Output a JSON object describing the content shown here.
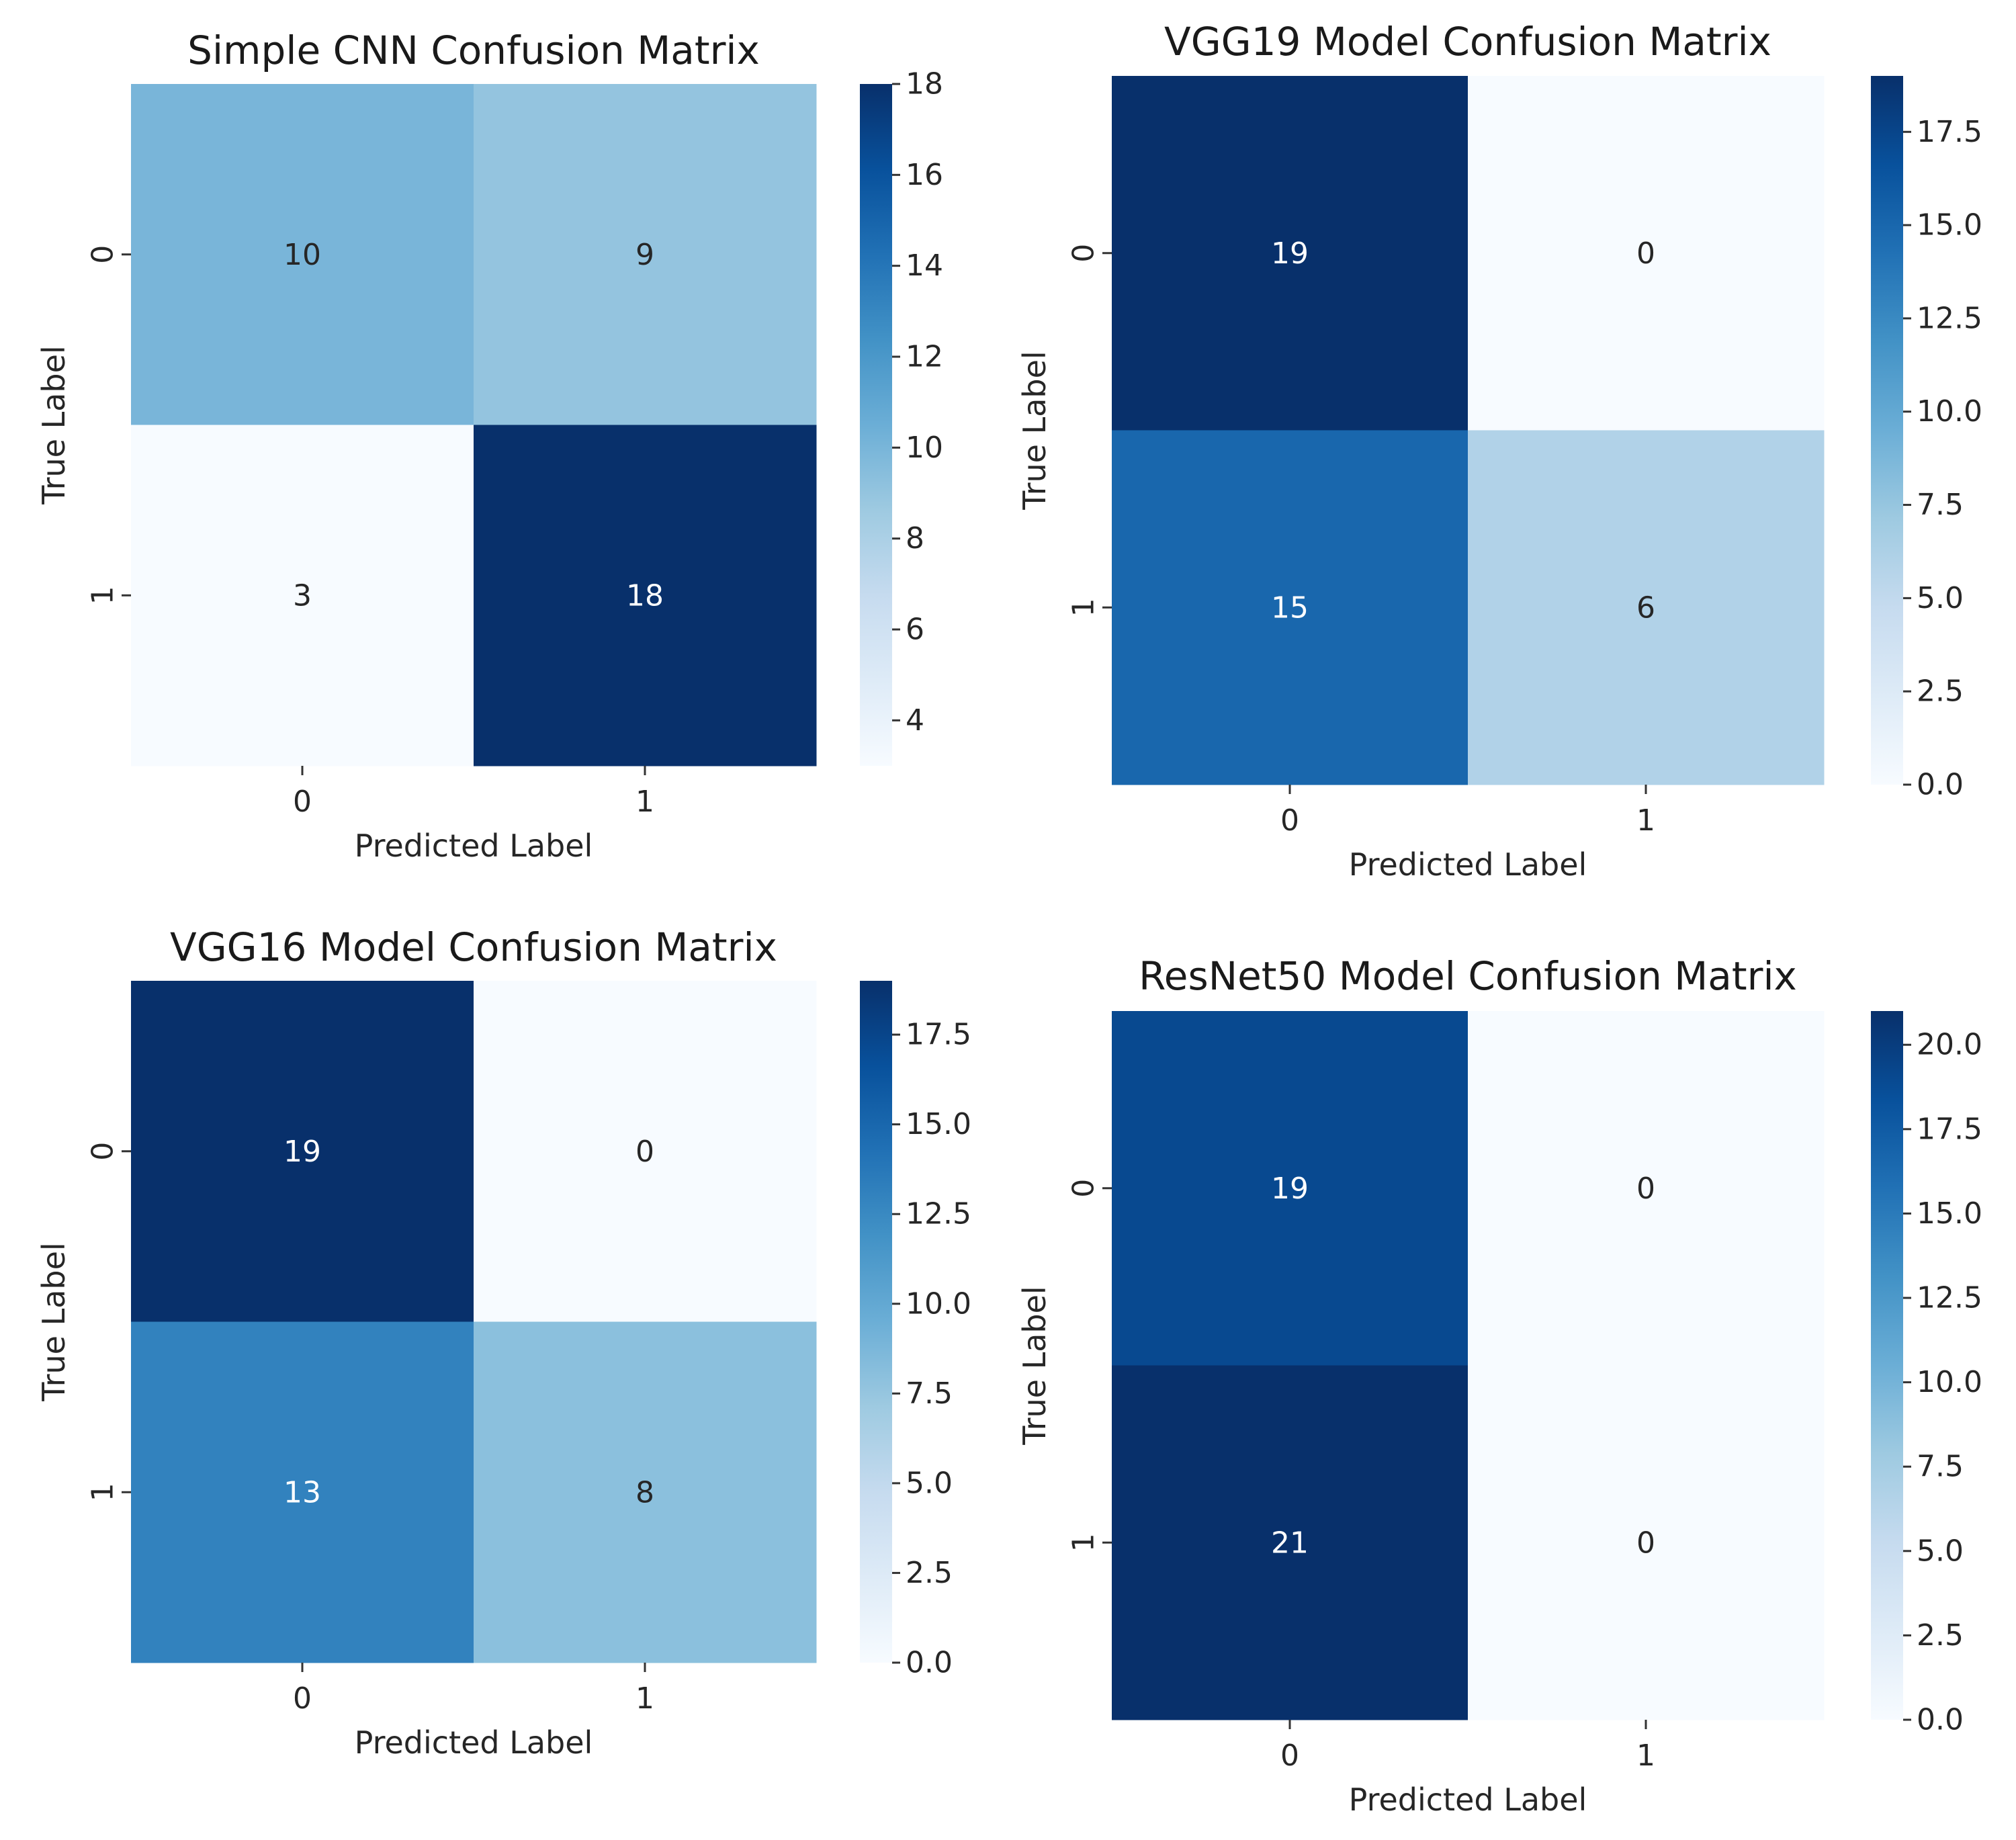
{
  "colors": {
    "low": "#f7fbff",
    "mid": "#6baed6",
    "high": "#08306b",
    "text_dark": "#262626",
    "text_light": "#ffffff"
  },
  "chart_data": [
    {
      "type": "heatmap",
      "title": "Simple CNN Confusion Matrix",
      "xlabel": "Predicted Label",
      "ylabel": "True Label",
      "x_categories": [
        "0",
        "1"
      ],
      "y_categories": [
        "0",
        "1"
      ],
      "values": [
        [
          10,
          9
        ],
        [
          3,
          18
        ]
      ],
      "color_range": [
        3,
        18
      ],
      "colorbar_ticks": [
        "4",
        "6",
        "8",
        "10",
        "12",
        "14",
        "16",
        "18"
      ],
      "colorbar_tick_values": [
        4,
        6,
        8,
        10,
        12,
        14,
        16,
        18
      ]
    },
    {
      "type": "heatmap",
      "title": "VGG19 Model Confusion Matrix",
      "xlabel": "Predicted Label",
      "ylabel": "True Label",
      "x_categories": [
        "0",
        "1"
      ],
      "y_categories": [
        "0",
        "1"
      ],
      "values": [
        [
          19,
          0
        ],
        [
          15,
          6
        ]
      ],
      "color_range": [
        0,
        19
      ],
      "colorbar_ticks": [
        "0.0",
        "2.5",
        "5.0",
        "7.5",
        "10.0",
        "12.5",
        "15.0",
        "17.5"
      ],
      "colorbar_tick_values": [
        0,
        2.5,
        5,
        7.5,
        10,
        12.5,
        15,
        17.5
      ]
    },
    {
      "type": "heatmap",
      "title": "VGG16 Model Confusion Matrix",
      "xlabel": "Predicted Label",
      "ylabel": "True Label",
      "x_categories": [
        "0",
        "1"
      ],
      "y_categories": [
        "0",
        "1"
      ],
      "values": [
        [
          19,
          0
        ],
        [
          13,
          8
        ]
      ],
      "color_range": [
        0,
        19
      ],
      "colorbar_ticks": [
        "0.0",
        "2.5",
        "5.0",
        "7.5",
        "10.0",
        "12.5",
        "15.0",
        "17.5"
      ],
      "colorbar_tick_values": [
        0,
        2.5,
        5,
        7.5,
        10,
        12.5,
        15,
        17.5
      ]
    },
    {
      "type": "heatmap",
      "title": "ResNet50 Model Confusion Matrix",
      "xlabel": "Predicted Label",
      "ylabel": "True Label",
      "x_categories": [
        "0",
        "1"
      ],
      "y_categories": [
        "0",
        "1"
      ],
      "values": [
        [
          19,
          0
        ],
        [
          21,
          0
        ]
      ],
      "color_range": [
        0,
        21
      ],
      "colorbar_ticks": [
        "0.0",
        "2.5",
        "5.0",
        "7.5",
        "10.0",
        "12.5",
        "15.0",
        "17.5",
        "20.0"
      ],
      "colorbar_tick_values": [
        0,
        2.5,
        5,
        7.5,
        10,
        12.5,
        15,
        17.5,
        20
      ]
    }
  ]
}
